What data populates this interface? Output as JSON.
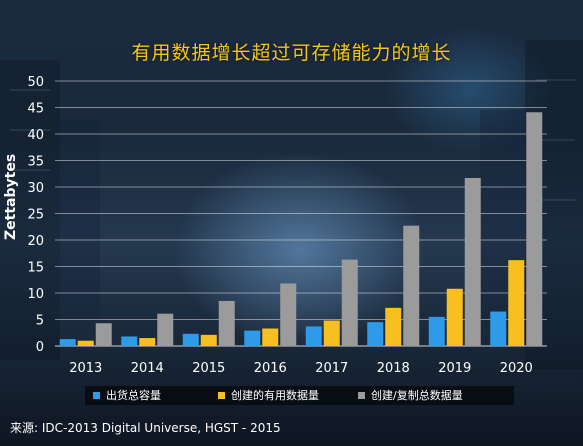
{
  "chart_data": {
    "type": "bar",
    "title": "有用数据增长超过可存储能力的增长",
    "ylabel": "Zettabytes",
    "ylim": [
      0,
      50
    ],
    "yticks": [
      0,
      5,
      10,
      15,
      20,
      25,
      30,
      35,
      40,
      45,
      50
    ],
    "grid": true,
    "legend_position": "bottom",
    "categories": [
      "2013",
      "2014",
      "2015",
      "2016",
      "2017",
      "2018",
      "2019",
      "2020"
    ],
    "series": [
      {
        "name": "出货总容量",
        "color": "#2e9be8",
        "values": [
          1.3,
          1.8,
          2.3,
          2.9,
          3.7,
          4.5,
          5.5,
          6.5
        ]
      },
      {
        "name": "创建的有用数据量",
        "color": "#f7c020",
        "values": [
          1.0,
          1.5,
          2.1,
          3.3,
          4.8,
          7.2,
          10.8,
          16.2
        ]
      },
      {
        "name": "创建/复制总数据量",
        "color": "#9b9b9b",
        "values": [
          4.3,
          6.1,
          8.5,
          11.8,
          16.3,
          22.7,
          31.7,
          44.1
        ]
      }
    ],
    "source": "来源: IDC-2013 Digital Universe, HGST - 2015"
  }
}
